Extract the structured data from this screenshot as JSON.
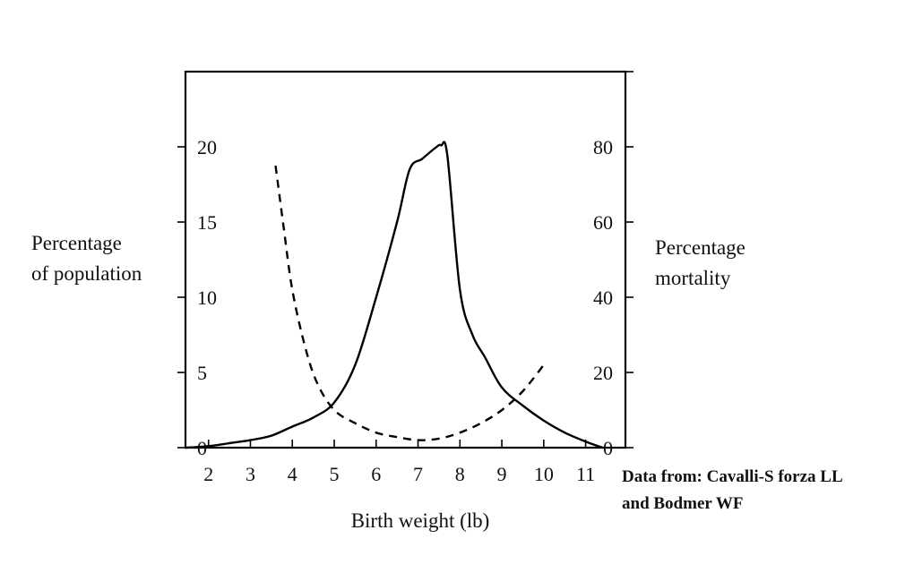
{
  "chart_data": {
    "type": "line",
    "xlabel": "Birth weight (lb)",
    "ylabel_left": "Percentage\nof population",
    "ylabel_right": "Percentage\nmortality",
    "x_ticks": [
      2,
      3,
      4,
      5,
      6,
      7,
      8,
      9,
      10,
      11
    ],
    "xlim": [
      1.45,
      11.95
    ],
    "y_left_ticks": [
      0,
      5,
      10,
      15,
      20
    ],
    "y_left_lim": [
      0,
      25
    ],
    "y_right_ticks": [
      0,
      20,
      40,
      60,
      80
    ],
    "y_right_lim": [
      0,
      100
    ],
    "grid": false,
    "series": [
      {
        "axis": "left",
        "style": "solid",
        "x": [
          1.45,
          2,
          2.5,
          3,
          3.5,
          4,
          4.5,
          5,
          5.5,
          6,
          6.5,
          6.8,
          7.1,
          7.4,
          7.55,
          7.7,
          8,
          8.3,
          8.6,
          9,
          9.5,
          10,
          10.5,
          11,
          11.4
        ],
        "y": [
          0,
          0.1,
          0.3,
          0.5,
          0.8,
          1.4,
          2.0,
          3.0,
          5.5,
          10.0,
          15.0,
          18.5,
          19.2,
          19.9,
          20.1,
          19.4,
          10.5,
          7.5,
          6.0,
          4.0,
          2.8,
          1.8,
          1.0,
          0.4,
          0
        ]
      },
      {
        "axis": "right",
        "style": "dashed",
        "x": [
          3.6,
          3.8,
          4.0,
          4.3,
          4.6,
          5.0,
          5.5,
          6.0,
          6.5,
          7.0,
          7.5,
          8.0,
          8.5,
          9.0,
          9.5,
          10.0
        ],
        "y": [
          75,
          58,
          42,
          27,
          17,
          10,
          6.5,
          4.0,
          2.8,
          2.0,
          2.4,
          4.0,
          6.5,
          10.0,
          15.0,
          22.0
        ]
      }
    ]
  },
  "source_note": [
    "Data from: Cavalli-S forza LL",
    "and Bodmer WF"
  ]
}
